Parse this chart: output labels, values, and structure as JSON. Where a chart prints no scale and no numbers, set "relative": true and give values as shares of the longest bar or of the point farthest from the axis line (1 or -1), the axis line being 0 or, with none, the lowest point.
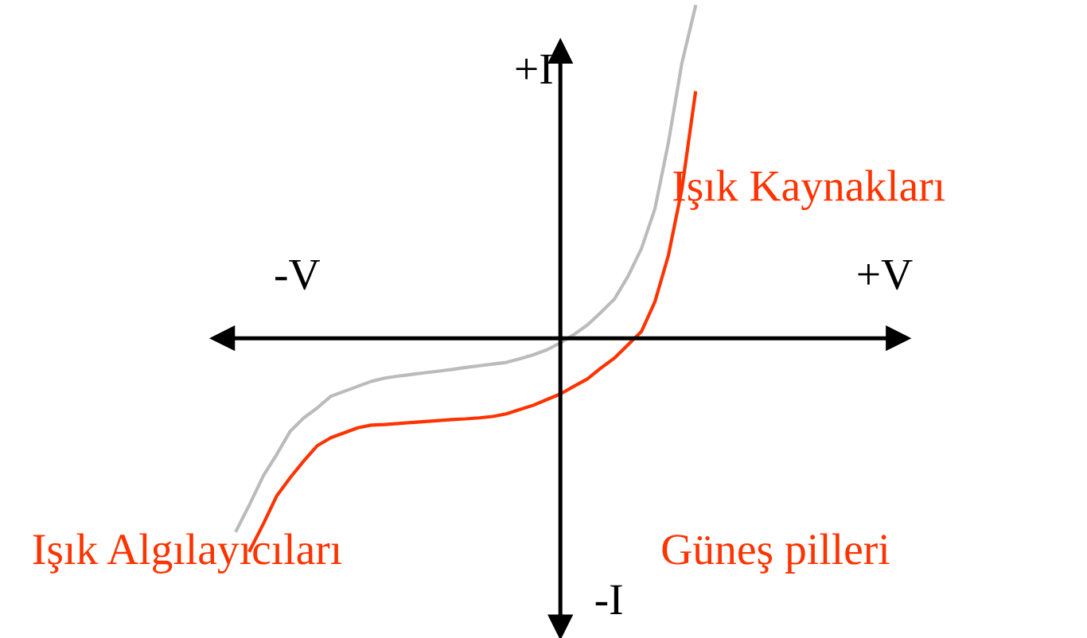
{
  "chart_data": {
    "type": "line",
    "relative": true,
    "xlabel": "+V",
    "ylabel": "+I",
    "annotations": [
      "-V",
      "-I",
      "Işık Kaynakları",
      "Işık Algılayıcıları",
      "Güneş pilleri"
    ],
    "categories": [
      null,
      null,
      null,
      null,
      null,
      null,
      null,
      null,
      null,
      null,
      null,
      null,
      null,
      null,
      null,
      null,
      null,
      null,
      null,
      null,
      null,
      null,
      null,
      null,
      null,
      null,
      null,
      null,
      null,
      null,
      null,
      null,
      null,
      null,
      null
    ],
    "series": [
      {
        "color": "#bbbbbb",
        "values": [
          -0.58,
          -0.5,
          -0.415,
          -0.35,
          -0.28,
          -0.24,
          -0.21,
          -0.175,
          -0.16,
          -0.145,
          -0.13,
          -0.12,
          -0.114,
          -0.109,
          -0.104,
          -0.099,
          -0.094,
          -0.088,
          -0.083,
          -0.078,
          -0.073,
          -0.062,
          -0.05,
          -0.035,
          -0.014,
          0.011,
          0.04,
          0.078,
          0.118,
          0.186,
          0.27,
          0.39,
          0.59,
          0.83,
          1.0
        ]
      },
      {
        "color": "#ff3300",
        "values": [
          null,
          -0.64,
          -0.56,
          -0.475,
          -0.42,
          -0.37,
          -0.324,
          -0.3,
          -0.285,
          -0.27,
          -0.262,
          -0.26,
          -0.257,
          -0.254,
          -0.251,
          -0.248,
          -0.245,
          -0.243,
          -0.24,
          -0.236,
          -0.228,
          -0.215,
          -0.202,
          -0.185,
          -0.168,
          -0.145,
          -0.123,
          -0.09,
          -0.06,
          -0.02,
          0.02,
          0.11,
          0.25,
          0.45,
          0.74
        ]
      }
    ]
  }
}
